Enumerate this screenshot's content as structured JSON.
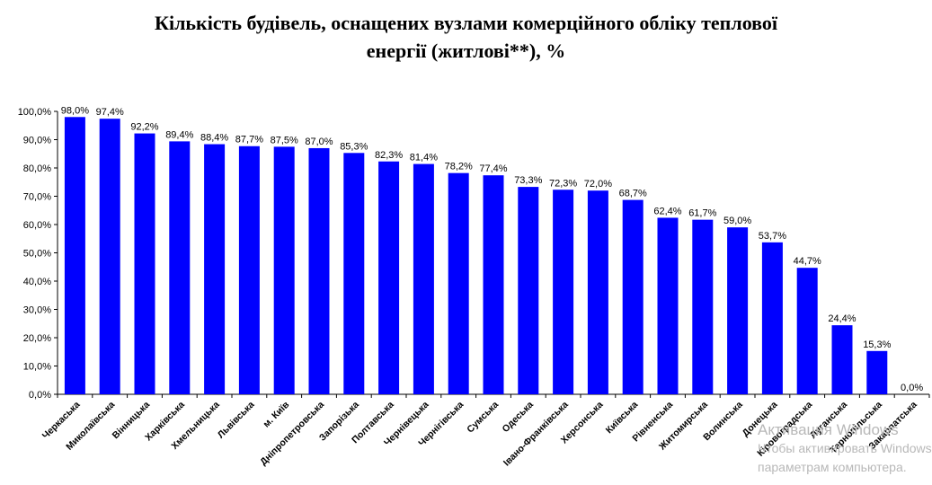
{
  "chart_data": {
    "type": "bar",
    "title_lines": [
      "Кількість будівель, оснащених вузлами комерційного обліку  теплової",
      "енергії (житлові**), %"
    ],
    "categories": [
      "Черкаська",
      "Миколаївська",
      "Вінницька",
      "Харківська",
      "Хмельницька",
      "Львівська",
      "м. Київ",
      "Дніпропетровська",
      "Запорізька",
      "Полтавська",
      "Чернівецька",
      "Чернігівська",
      "Сумська",
      "Одеська",
      "Івано-Франківська",
      "Херсонська",
      "Київська",
      "Рівненська",
      "Житомирська",
      "Волинська",
      "Донецька",
      "Кіровоградська",
      "Луганська",
      "Тернопільська",
      "Закарпатська"
    ],
    "values": [
      98.0,
      97.4,
      92.2,
      89.4,
      88.4,
      87.7,
      87.5,
      87.0,
      85.3,
      82.3,
      81.4,
      78.2,
      77.4,
      73.3,
      72.3,
      72.0,
      68.7,
      62.4,
      61.7,
      59.0,
      53.7,
      44.7,
      24.4,
      15.3,
      0.0
    ],
    "value_labels": [
      "98,0%",
      "97,4%",
      "92,2%",
      "89,4%",
      "88,4%",
      "87,7%",
      "87,5%",
      "87,0%",
      "85,3%",
      "82,3%",
      "81,4%",
      "78,2%",
      "77,4%",
      "73,3%",
      "72,3%",
      "72,0%",
      "68,7%",
      "62,4%",
      "61,7%",
      "59,0%",
      "53,7%",
      "44,7%",
      "24,4%",
      "15,3%",
      "0,0%"
    ],
    "yticks": [
      "0,0%",
      "10,0%",
      "20,0%",
      "30,0%",
      "40,0%",
      "50,0%",
      "60,0%",
      "70,0%",
      "80,0%",
      "90,0%",
      "100,0%"
    ],
    "ylim": [
      0,
      100
    ],
    "bar_color": "#0000ff",
    "grid": false,
    "xlabel": "",
    "ylabel": ""
  },
  "watermark": {
    "line1": "Активация Windows",
    "line2": "Чтобы активировать Windows",
    "line3": "параметрам компьютера."
  }
}
